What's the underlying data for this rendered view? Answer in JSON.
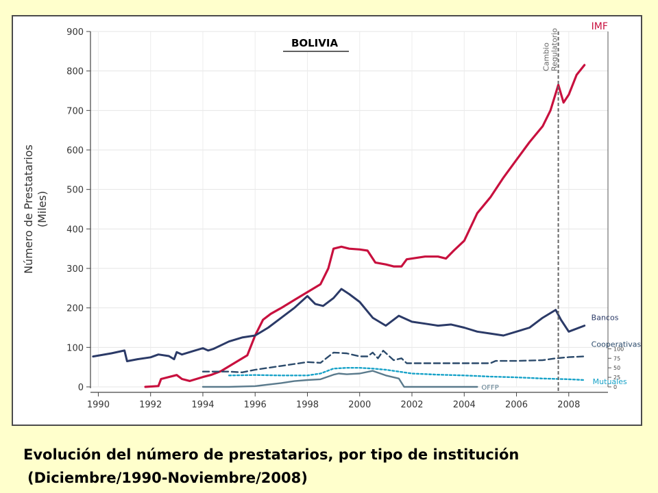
{
  "chart_data": {
    "type": "line",
    "title": "BOLIVIA",
    "ylabel_line1": "Número de Prestatarios",
    "ylabel_line2": "(Miles)",
    "xlim": [
      1989.7,
      2009.5
    ],
    "ylim": [
      0,
      900
    ],
    "y_ticks": [
      0,
      100,
      200,
      300,
      400,
      500,
      600,
      700,
      800,
      900
    ],
    "x_ticks": [
      1990,
      1992,
      1994,
      1996,
      1998,
      2000,
      2002,
      2004,
      2006,
      2008
    ],
    "secondary_axis_ticks": [
      0,
      25,
      50,
      75,
      100
    ],
    "secondary_axis_range": [
      0,
      100
    ],
    "grid": true,
    "annotation": {
      "text_line1": "Cambio",
      "text_line2": "Regulatorio",
      "x": 2007.6
    },
    "series": [
      {
        "name": "IMF",
        "axis": "primary",
        "color": "#c8103e",
        "style": "solid",
        "x": [
          1991.8,
          1992.3,
          1992.4,
          1993.0,
          1993.2,
          1993.5,
          1994.0,
          1994.3,
          1994.7,
          1995.2,
          1995.7,
          1996.0,
          1996.3,
          1996.6,
          1997.0,
          1997.5,
          1998.0,
          1998.5,
          1998.8,
          1999.0,
          1999.3,
          1999.6,
          2000.0,
          2000.3,
          2000.6,
          2001.0,
          2001.3,
          2001.6,
          2001.8,
          2002.0,
          2002.5,
          2003.0,
          2003.3,
          2003.6,
          2004.0,
          2004.5,
          2005.0,
          2005.5,
          2006.0,
          2006.5,
          2007.0,
          2007.3,
          2007.6,
          2007.8,
          2008.0,
          2008.3,
          2008.6
        ],
        "values": [
          0,
          2,
          20,
          30,
          20,
          15,
          25,
          30,
          40,
          60,
          80,
          130,
          170,
          185,
          200,
          220,
          240,
          260,
          300,
          350,
          355,
          350,
          348,
          345,
          315,
          310,
          305,
          305,
          323,
          325,
          330,
          330,
          325,
          345,
          370,
          440,
          480,
          530,
          575,
          620,
          660,
          700,
          765,
          720,
          740,
          790,
          815
        ]
      },
      {
        "name": "Bancos",
        "axis": "primary",
        "color": "#2b3a67",
        "style": "solid",
        "x": [
          1989.8,
          1990.5,
          1991.0,
          1991.1,
          1991.5,
          1992.0,
          1992.3,
          1992.7,
          1992.9,
          1993.0,
          1993.2,
          1993.6,
          1994.0,
          1994.2,
          1994.4,
          1995.0,
          1995.5,
          1996.0,
          1996.5,
          1997.0,
          1997.5,
          1998.0,
          1998.3,
          1998.6,
          1999.0,
          1999.3,
          1999.6,
          2000.0,
          2000.5,
          2001.0,
          2001.5,
          2002.0,
          2002.5,
          2003.0,
          2003.5,
          2004.0,
          2004.5,
          2005.0,
          2005.5,
          2006.0,
          2006.5,
          2007.0,
          2007.5,
          2007.7,
          2008.0,
          2008.6
        ],
        "values": [
          77,
          85,
          92,
          65,
          70,
          75,
          82,
          78,
          70,
          88,
          82,
          90,
          98,
          92,
          96,
          115,
          125,
          130,
          150,
          175,
          200,
          230,
          210,
          205,
          225,
          248,
          235,
          215,
          175,
          155,
          180,
          165,
          160,
          155,
          158,
          150,
          140,
          135,
          130,
          140,
          150,
          175,
          195,
          170,
          140,
          155
        ]
      },
      {
        "name": "Cooperativas",
        "axis": "secondary",
        "color": "#2b4a6b",
        "style": "dashed",
        "x": [
          1994.0,
          1995.0,
          1995.5,
          1996.0,
          1996.5,
          1997.0,
          1997.5,
          1998.0,
          1998.5,
          1999.0,
          1999.5,
          2000.0,
          2000.3,
          2000.5,
          2000.7,
          2000.9,
          2001.3,
          2001.6,
          2001.8,
          2002.0,
          2002.5,
          2003.0,
          2004.0,
          2005.0,
          2005.2,
          2006.0,
          2007.0,
          2007.5,
          2008.0,
          2008.6
        ],
        "values": [
          40,
          40,
          38,
          45,
          50,
          55,
          60,
          65,
          63,
          90,
          88,
          80,
          80,
          90,
          75,
          95,
          70,
          75,
          62,
          62,
          62,
          62,
          62,
          62,
          68,
          68,
          70,
          75,
          78,
          80
        ]
      },
      {
        "name": "Mutuales",
        "axis": "secondary",
        "color": "#17a2c8",
        "style": "dotted",
        "x": [
          1995.0,
          1996.0,
          1997.0,
          1998.0,
          1998.5,
          1999.0,
          1999.5,
          2000.0,
          2000.5,
          2001.0,
          2001.5,
          2002.0,
          2003.0,
          2004.0,
          2005.0,
          2006.0,
          2007.0,
          2008.0,
          2008.6
        ],
        "values": [
          30,
          31,
          30,
          30,
          35,
          48,
          50,
          50,
          48,
          45,
          40,
          35,
          32,
          30,
          27,
          25,
          22,
          20,
          18
        ]
      },
      {
        "name": "OFFP",
        "axis": "secondary",
        "color": "#5a7a8c",
        "style": "solid",
        "x": [
          1994.0,
          1995.0,
          1996.0,
          1997.0,
          1997.5,
          1998.0,
          1998.5,
          1999.0,
          1999.2,
          1999.5,
          2000.0,
          2000.5,
          2001.0,
          2001.5,
          2001.7,
          2002.0,
          2003.0,
          2004.0,
          2004.5
        ],
        "values": [
          0,
          0,
          2,
          10,
          15,
          18,
          20,
          32,
          35,
          33,
          35,
          42,
          30,
          22,
          0,
          0,
          0,
          0,
          0
        ]
      }
    ]
  },
  "caption": {
    "line1": "Evolución del número de prestatarios, por tipo de institución",
    "line2": "(Diciembre/1990-Noviembre/2008)"
  }
}
